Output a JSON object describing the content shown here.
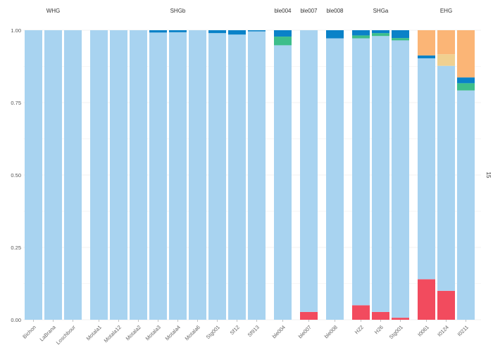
{
  "chart_data": {
    "type": "bar",
    "stacked": true,
    "ylim": [
      0,
      1
    ],
    "yticks": [
      0.0,
      0.25,
      0.5,
      0.75,
      1.0
    ],
    "ytick_labels": [
      "0.00",
      "0.25",
      "0.50",
      "0.75",
      "1.00"
    ],
    "grid": true,
    "legend": "none",
    "right_strip_label": "15",
    "colors": {
      "c_red": "#f24b5e",
      "c_lightblue": "#a8d3f0",
      "c_green": "#3dbe8a",
      "c_blue": "#0a82c8",
      "c_beige": "#f0d090",
      "c_orange": "#fbb576"
    },
    "groups": [
      {
        "label": "WHG",
        "samples": [
          {
            "label": "Bichon",
            "segments": [
              {
                "color": "c_lightblue",
                "value": 1.0
              }
            ]
          },
          {
            "label": "LaBrana",
            "segments": [
              {
                "color": "c_lightblue",
                "value": 1.0
              }
            ]
          },
          {
            "label": "Loschbour",
            "segments": [
              {
                "color": "c_lightblue",
                "value": 1.0
              }
            ]
          }
        ]
      },
      {
        "label": "SHGb",
        "samples": [
          {
            "label": "Motala1",
            "segments": [
              {
                "color": "c_lightblue",
                "value": 1.0
              }
            ]
          },
          {
            "label": "Motala12",
            "segments": [
              {
                "color": "c_lightblue",
                "value": 1.0
              }
            ]
          },
          {
            "label": "Motala2",
            "segments": [
              {
                "color": "c_lightblue",
                "value": 1.0
              }
            ]
          },
          {
            "label": "Motala3",
            "segments": [
              {
                "color": "c_lightblue",
                "value": 0.992
              },
              {
                "color": "c_blue",
                "value": 0.008
              }
            ]
          },
          {
            "label": "Motala4",
            "segments": [
              {
                "color": "c_lightblue",
                "value": 0.993
              },
              {
                "color": "c_blue",
                "value": 0.007
              }
            ]
          },
          {
            "label": "Motala6",
            "segments": [
              {
                "color": "c_lightblue",
                "value": 1.0
              }
            ]
          },
          {
            "label": "Stg001",
            "segments": [
              {
                "color": "c_lightblue",
                "value": 0.99
              },
              {
                "color": "c_blue",
                "value": 0.01
              }
            ]
          },
          {
            "label": "Sf12",
            "segments": [
              {
                "color": "c_lightblue",
                "value": 0.985
              },
              {
                "color": "c_blue",
                "value": 0.015
              }
            ]
          },
          {
            "label": "Sf913",
            "segments": [
              {
                "color": "c_lightblue",
                "value": 0.996
              },
              {
                "color": "c_blue",
                "value": 0.004
              }
            ]
          }
        ]
      },
      {
        "label": "ble004",
        "samples": [
          {
            "label": "ble004",
            "segments": [
              {
                "color": "c_lightblue",
                "value": 0.948
              },
              {
                "color": "c_green",
                "value": 0.03
              },
              {
                "color": "c_blue",
                "value": 0.022
              }
            ]
          }
        ]
      },
      {
        "label": "ble007",
        "samples": [
          {
            "label": "ble007",
            "segments": [
              {
                "color": "c_red",
                "value": 0.027
              },
              {
                "color": "c_lightblue",
                "value": 0.973
              }
            ]
          }
        ]
      },
      {
        "label": "ble008",
        "samples": [
          {
            "label": "ble008",
            "segments": [
              {
                "color": "c_lightblue",
                "value": 0.972
              },
              {
                "color": "c_blue",
                "value": 0.028
              }
            ]
          }
        ]
      },
      {
        "label": "SHGa",
        "samples": [
          {
            "label": "H22",
            "segments": [
              {
                "color": "c_red",
                "value": 0.05
              },
              {
                "color": "c_lightblue",
                "value": 0.922
              },
              {
                "color": "c_green",
                "value": 0.01
              },
              {
                "color": "c_blue",
                "value": 0.018
              }
            ]
          },
          {
            "label": "H26",
            "segments": [
              {
                "color": "c_red",
                "value": 0.027
              },
              {
                "color": "c_lightblue",
                "value": 0.953
              },
              {
                "color": "c_green",
                "value": 0.01
              },
              {
                "color": "c_blue",
                "value": 0.01
              }
            ]
          },
          {
            "label": "Stg001",
            "segments": [
              {
                "color": "c_red",
                "value": 0.007
              },
              {
                "color": "c_lightblue",
                "value": 0.958
              },
              {
                "color": "c_green",
                "value": 0.008
              },
              {
                "color": "c_blue",
                "value": 0.027
              }
            ]
          }
        ]
      },
      {
        "label": "EHG",
        "samples": [
          {
            "label": "I0061",
            "segments": [
              {
                "color": "c_red",
                "value": 0.14
              },
              {
                "color": "c_lightblue",
                "value": 0.763
              },
              {
                "color": "c_blue",
                "value": 0.01
              },
              {
                "color": "c_orange",
                "value": 0.087
              }
            ]
          },
          {
            "label": "I0124",
            "segments": [
              {
                "color": "c_red",
                "value": 0.1
              },
              {
                "color": "c_lightblue",
                "value": 0.777
              },
              {
                "color": "c_beige",
                "value": 0.04
              },
              {
                "color": "c_orange",
                "value": 0.083
              }
            ]
          },
          {
            "label": "I0211",
            "segments": [
              {
                "color": "c_lightblue",
                "value": 0.792
              },
              {
                "color": "c_green",
                "value": 0.025
              },
              {
                "color": "c_blue",
                "value": 0.02
              },
              {
                "color": "c_orange",
                "value": 0.163
              }
            ]
          }
        ]
      }
    ]
  }
}
